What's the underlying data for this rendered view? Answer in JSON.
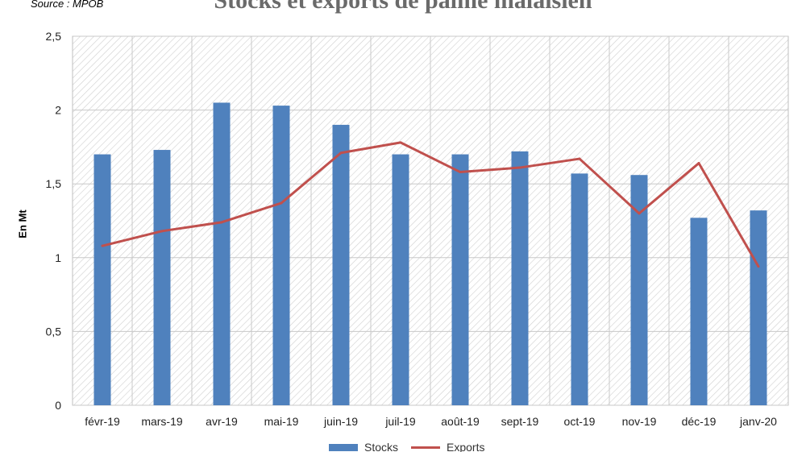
{
  "source": "Source : MPOB",
  "chart_data": {
    "type": "bar",
    "title": "Stocks et exports de palme malaisien",
    "xlabel": "",
    "ylabel": "En Mt",
    "ylim": [
      0,
      2.5
    ],
    "yticks": [
      "0",
      "0,5",
      "1",
      "1,5",
      "2",
      "2,5"
    ],
    "grid": true,
    "legend_position": "bottom",
    "categories": [
      "févr-19",
      "mars-19",
      "avr-19",
      "mai-19",
      "juin-19",
      "juil-19",
      "août-19",
      "sept-19",
      "oct-19",
      "nov-19",
      "déc-19",
      "janv-20"
    ],
    "series": [
      {
        "name": "Stocks",
        "type": "bar",
        "color": "#4f81bd",
        "values": [
          1.7,
          1.73,
          2.05,
          2.03,
          1.9,
          1.7,
          1.7,
          1.72,
          1.57,
          1.56,
          1.27,
          1.32
        ]
      },
      {
        "name": "Exports",
        "type": "line",
        "color": "#c0504d",
        "values": [
          1.08,
          1.18,
          1.24,
          1.37,
          1.71,
          1.78,
          1.58,
          1.61,
          1.67,
          1.3,
          1.64,
          0.94
        ]
      }
    ]
  }
}
